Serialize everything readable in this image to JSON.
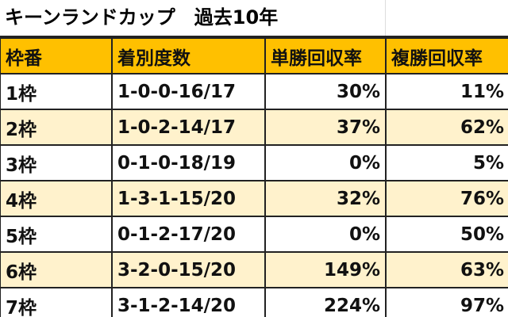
{
  "title": "キーンランドカップ　過去10年",
  "columns": [
    "枠番",
    "着別度数",
    "単勝回収率",
    "複勝回収率"
  ],
  "rows": [
    [
      "1枠",
      "1-0-0-16/17",
      "30%",
      "11%"
    ],
    [
      "2枠",
      "1-0-2-14/17",
      "37%",
      "62%"
    ],
    [
      "3枠",
      "0-1-0-18/19",
      "0%",
      "5%"
    ],
    [
      "4枠",
      "1-3-1-15/20",
      "32%",
      "76%"
    ],
    [
      "5枠",
      "0-1-2-17/20",
      "0%",
      "50%"
    ],
    [
      "6枠",
      "3-2-0-15/20",
      "149%",
      "63%"
    ],
    [
      "7枠",
      "3-1-2-14/20",
      "224%",
      "97%"
    ]
  ],
  "colors": {
    "header": "#FFC000",
    "alt_row": "#FFF2CC"
  }
}
